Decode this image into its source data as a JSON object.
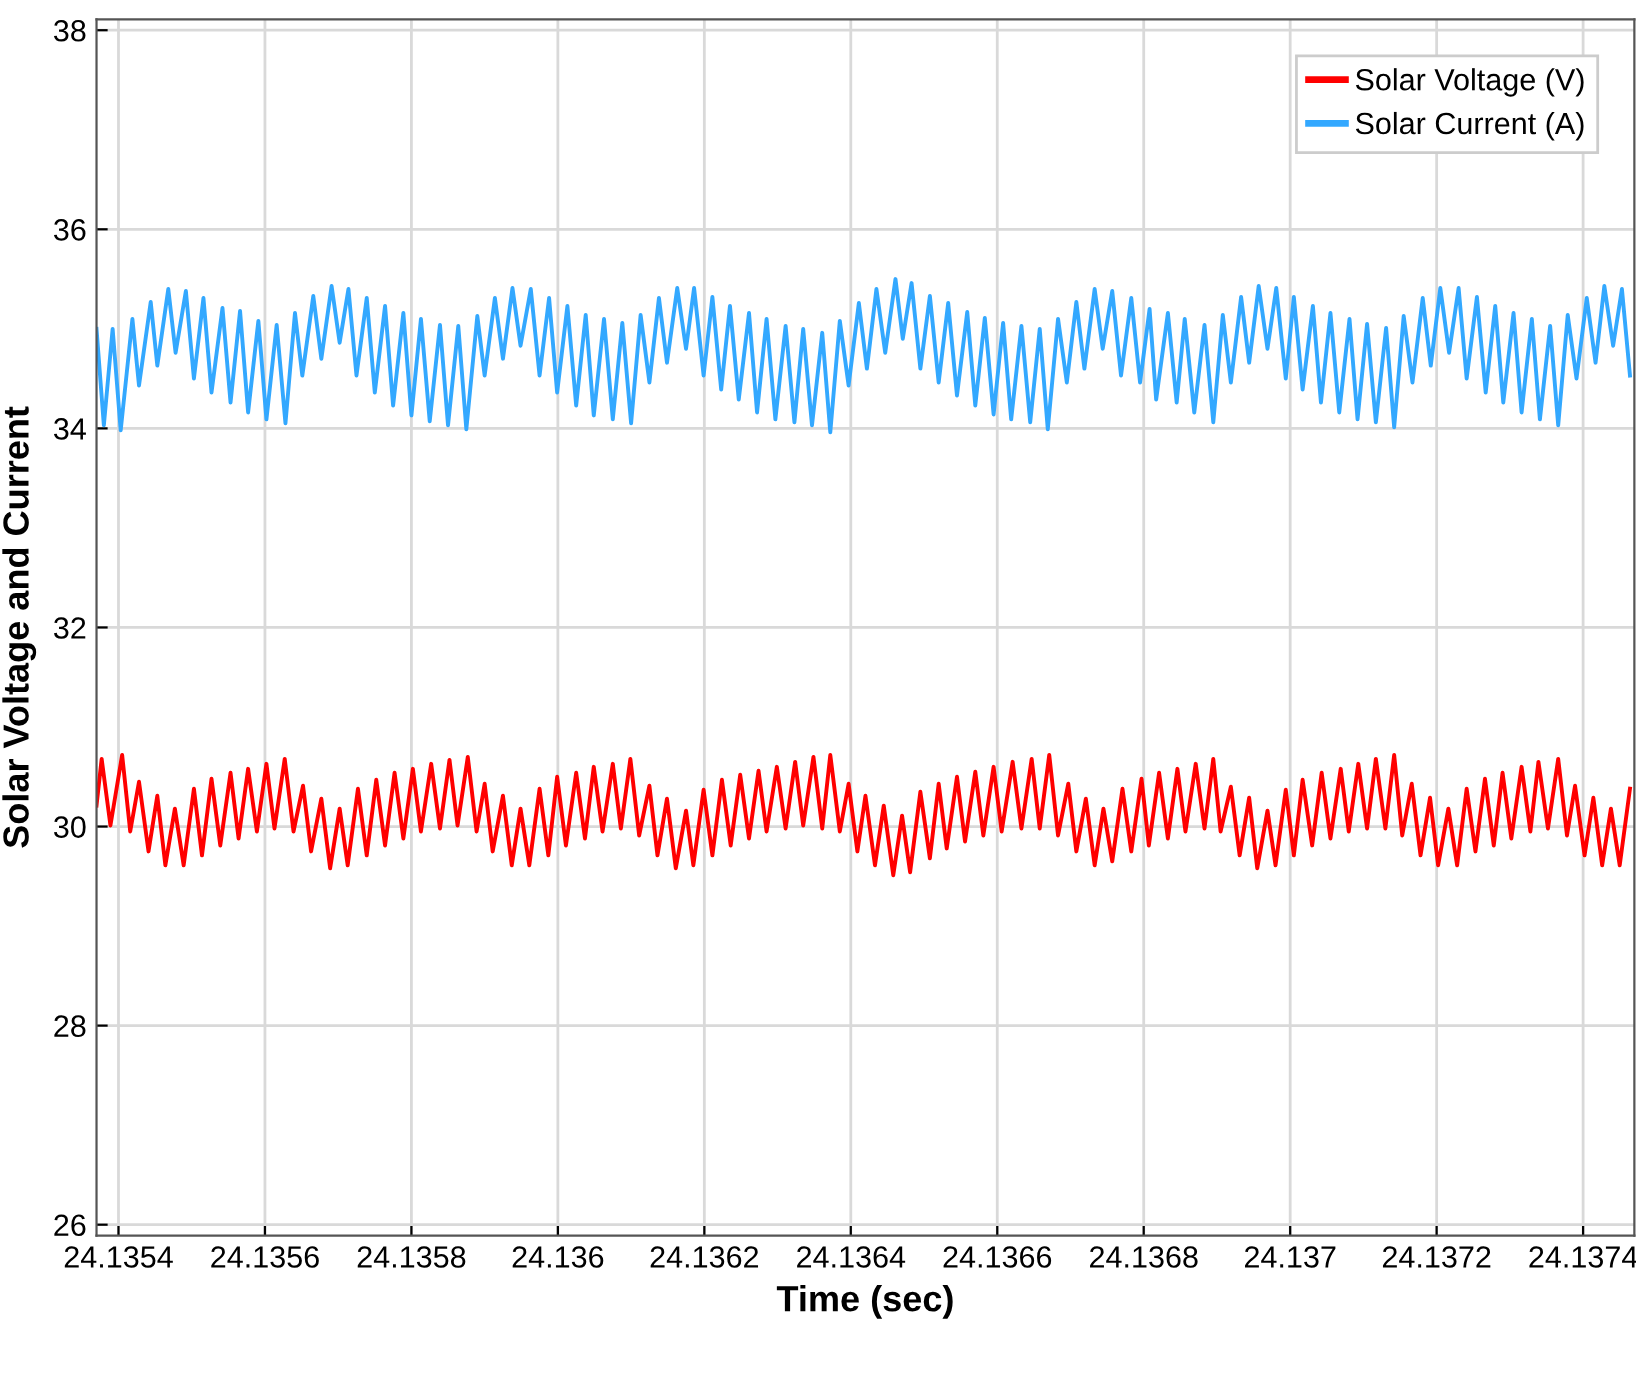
{
  "chart_data": {
    "type": "line",
    "xlabel": "Time (sec)",
    "ylabel": "Solar Voltage and Current",
    "xlim": [
      24.13537,
      24.13747
    ],
    "ylim": [
      25.89,
      38.11
    ],
    "xticks": [
      24.1354,
      24.1356,
      24.1358,
      24.136,
      24.1362,
      24.1364,
      24.1366,
      24.1368,
      24.137,
      24.1372,
      24.1374
    ],
    "yticks": [
      26,
      28,
      30,
      32,
      34,
      36,
      38
    ],
    "grid": true,
    "legend": "top right",
    "marker": "none",
    "line_style": "solid",
    "series": [
      {
        "name": "Solar Voltage (V)",
        "color": "#ff0000",
        "x": [
          24.13537,
          24.135377,
          24.135389,
          24.135405,
          24.135416,
          24.135428,
          24.135441,
          24.135453,
          24.135464,
          24.135477,
          24.135489,
          24.135503,
          24.135514,
          24.135527,
          24.135539,
          24.135553,
          24.135564,
          24.135577,
          24.135589,
          24.135602,
          24.135613,
          24.135627,
          24.135639,
          24.135652,
          24.135663,
          24.135677,
          24.135689,
          24.135702,
          24.135713,
          24.135727,
          24.135739,
          24.135752,
          24.135764,
          24.135777,
          24.135789,
          24.135802,
          24.135813,
          24.135827,
          24.135839,
          24.135852,
          24.135863,
          24.135877,
          24.135889,
          24.1359,
          24.135911,
          24.135925,
          24.135937,
          24.135949,
          24.135961,
          24.135975,
          24.135987,
          24.135999,
          24.136011,
          24.136025,
          24.136037,
          24.136049,
          24.136061,
          24.136075,
          24.136086,
          24.136099,
          24.136111,
          24.136125,
          24.136136,
          24.136149,
          24.136161,
          24.136175,
          24.136185,
          24.136199,
          24.136211,
          24.136224,
          24.136236,
          24.136249,
          24.136261,
          24.136274,
          24.136285,
          24.136299,
          24.136311,
          24.136324,
          24.136335,
          24.136349,
          24.136361,
          24.136372,
          24.136385,
          24.136397,
          24.136409,
          24.13642,
          24.136433,
          24.136445,
          24.136458,
          24.13647,
          24.136481,
          24.136495,
          24.136508,
          24.13652,
          24.136531,
          24.136545,
          24.136556,
          24.13657,
          24.136581,
          24.136595,
          24.136606,
          24.136621,
          24.136633,
          24.136647,
          24.136658,
          24.136671,
          24.136683,
          24.136697,
          24.136708,
          24.136721,
          24.136733,
          24.136745,
          24.136757,
          24.136771,
          24.136783,
          24.136797,
          24.136807,
          24.136821,
          24.136833,
          24.136846,
          24.136857,
          24.136871,
          24.136883,
          24.136895,
          24.136905,
          24.136919,
          24.136931,
          24.136944,
          24.136955,
          24.136969,
          24.13698,
          24.136994,
          24.137005,
          24.137017,
          24.13703,
          24.137043,
          24.137055,
          24.137069,
          24.13708,
          24.137093,
          24.137105,
          24.137117,
          24.13713,
          24.137142,
          24.137153,
          24.137166,
          24.137178,
          24.137191,
          24.137202,
          24.137216,
          24.137228,
          24.137241,
          24.137253,
          24.137266,
          24.137278,
          24.13729,
          24.137302,
          24.137316,
          24.137328,
          24.137339,
          24.137352,
          24.137366,
          24.137378,
          24.137389,
          24.137402,
          24.137414,
          24.137426,
          24.137438,
          24.13745,
          24.137464
        ],
        "values": [
          30.21,
          30.68,
          30.01,
          30.72,
          29.95,
          30.45,
          29.75,
          30.31,
          29.61,
          30.18,
          29.61,
          30.38,
          29.71,
          30.48,
          29.81,
          30.54,
          29.88,
          30.58,
          29.95,
          30.63,
          29.98,
          30.68,
          29.95,
          30.41,
          29.75,
          30.28,
          29.58,
          30.18,
          29.61,
          30.38,
          29.71,
          30.47,
          29.81,
          30.54,
          29.88,
          30.58,
          29.95,
          30.63,
          29.98,
          30.67,
          30.01,
          30.7,
          29.95,
          30.43,
          29.75,
          30.31,
          29.61,
          30.18,
          29.61,
          30.38,
          29.71,
          30.5,
          29.81,
          30.54,
          29.88,
          30.6,
          29.95,
          30.63,
          29.98,
          30.68,
          29.91,
          30.41,
          29.71,
          30.28,
          29.58,
          30.16,
          29.61,
          30.37,
          29.71,
          30.47,
          29.81,
          30.52,
          29.88,
          30.56,
          29.95,
          30.6,
          29.98,
          30.65,
          30.01,
          30.7,
          29.98,
          30.72,
          29.95,
          30.43,
          29.75,
          30.31,
          29.61,
          30.21,
          29.51,
          30.11,
          29.54,
          30.35,
          29.68,
          30.43,
          29.78,
          30.5,
          29.85,
          30.55,
          29.91,
          30.6,
          29.95,
          30.65,
          29.98,
          30.68,
          29.98,
          30.72,
          29.91,
          30.43,
          29.75,
          30.28,
          29.61,
          30.18,
          29.65,
          30.38,
          29.75,
          30.48,
          29.81,
          30.54,
          29.88,
          30.58,
          29.95,
          30.63,
          29.98,
          30.68,
          29.95,
          30.4,
          29.71,
          30.29,
          29.58,
          30.16,
          29.61,
          30.37,
          29.71,
          30.47,
          29.81,
          30.54,
          29.88,
          30.58,
          29.95,
          30.63,
          29.98,
          30.68,
          29.98,
          30.72,
          29.91,
          30.43,
          29.71,
          30.29,
          29.61,
          30.18,
          29.61,
          30.38,
          29.75,
          30.48,
          29.81,
          30.54,
          29.88,
          30.6,
          29.95,
          30.65,
          29.98,
          30.68,
          29.91,
          30.41,
          29.71,
          30.29,
          29.61,
          30.18,
          29.61,
          30.38
        ]
      },
      {
        "name": "Solar Current (A)",
        "color": "#33a8ff",
        "x": [
          24.13537,
          24.13538,
          24.135392,
          24.135403,
          24.135419,
          24.135428,
          24.135444,
          24.135453,
          24.135468,
          24.135478,
          24.135492,
          24.135503,
          24.135516,
          24.135527,
          24.135542,
          24.135553,
          24.135566,
          24.135577,
          24.135591,
          24.135602,
          24.135616,
          24.135628,
          24.135641,
          24.135651,
          24.135666,
          24.135677,
          24.135691,
          24.135702,
          24.135714,
          24.135725,
          24.135739,
          24.13575,
          24.135764,
          24.135775,
          24.135789,
          24.1358,
          24.135813,
          24.135825,
          24.135839,
          24.13585,
          24.135864,
          24.135875,
          24.13589,
          24.1359,
          24.135914,
          24.135925,
          24.135938,
          24.135949,
          24.135963,
          24.135975,
          24.135988,
          24.135999,
          24.136013,
          24.136025,
          24.136038,
          24.136049,
          24.136063,
          24.136075,
          24.136088,
          24.1361,
          24.136113,
          24.136125,
          24.136138,
          24.136149,
          24.136163,
          24.136175,
          24.136186,
          24.136199,
          24.136211,
          24.136223,
          24.136235,
          24.136247,
          24.136261,
          24.136272,
          24.136285,
          24.136297,
          24.136311,
          24.136323,
          24.136335,
          24.136347,
          24.136361,
          24.136372,
          24.136385,
          24.136397,
          24.136411,
          24.136422,
          24.136435,
          24.136447,
          24.136461,
          24.136471,
          24.136483,
          24.136495,
          24.136508,
          24.13652,
          24.136533,
          24.136545,
          24.136559,
          24.13657,
          24.136583,
          24.136595,
          24.136608,
          24.136619,
          24.136633,
          24.136645,
          24.136658,
          24.136669,
          24.136683,
          24.136695,
          24.136708,
          24.136719,
          24.136733,
          24.136744,
          24.136757,
          24.136769,
          24.136783,
          24.136795,
          24.136808,
          24.136817,
          24.136833,
          24.136845,
          24.136856,
          24.136869,
          24.136883,
          24.136895,
          24.136908,
          24.136919,
          24.136933,
          24.136944,
          24.136957,
          24.136969,
          24.136981,
          24.136994,
          24.137005,
          24.137017,
          24.137031,
          24.137042,
          24.137055,
          24.137067,
          24.137081,
          24.137092,
          24.137105,
          24.137117,
          24.137131,
          24.137142,
          24.137155,
          24.137167,
          24.137181,
          24.137192,
          24.137205,
          24.137217,
          24.13723,
          24.137241,
          24.137255,
          24.137267,
          24.13728,
          24.137291,
          24.137305,
          24.137316,
          24.13733,
          24.137341,
          24.137355,
          24.137366,
          24.137379,
          24.137391,
          24.137405,
          24.137417,
          24.137429,
          24.137441,
          24.137453,
          24.137464
        ],
        "values": [
          35.0,
          34.03,
          35.0,
          33.98,
          35.1,
          34.43,
          35.27,
          34.63,
          35.4,
          34.76,
          35.38,
          34.5,
          35.31,
          34.36,
          35.21,
          34.26,
          35.18,
          34.16,
          35.08,
          34.09,
          35.04,
          34.05,
          35.16,
          34.53,
          35.33,
          34.7,
          35.43,
          34.86,
          35.4,
          34.53,
          35.31,
          34.36,
          35.23,
          34.23,
          35.16,
          34.13,
          35.1,
          34.07,
          35.04,
          34.03,
          35.03,
          33.99,
          35.13,
          34.53,
          35.31,
          34.7,
          35.41,
          34.83,
          35.4,
          34.53,
          35.31,
          34.36,
          35.23,
          34.23,
          35.14,
          34.13,
          35.1,
          34.09,
          35.06,
          34.05,
          35.14,
          34.46,
          35.31,
          34.66,
          35.41,
          34.8,
          35.41,
          34.53,
          35.32,
          34.39,
          35.23,
          34.29,
          35.16,
          34.16,
          35.1,
          34.09,
          35.03,
          34.06,
          35.0,
          34.03,
          34.96,
          33.96,
          35.08,
          34.43,
          35.26,
          34.6,
          35.4,
          34.76,
          35.5,
          34.9,
          35.46,
          34.6,
          35.33,
          34.46,
          35.26,
          34.33,
          35.17,
          34.23,
          35.11,
          34.14,
          35.06,
          34.09,
          35.03,
          34.06,
          35.0,
          33.99,
          35.1,
          34.46,
          35.27,
          34.6,
          35.4,
          34.8,
          35.38,
          34.53,
          35.31,
          34.46,
          35.2,
          34.29,
          35.16,
          34.26,
          35.1,
          34.16,
          35.04,
          34.06,
          35.14,
          34.46,
          35.32,
          34.66,
          35.43,
          34.8,
          35.41,
          34.5,
          35.32,
          34.39,
          35.23,
          34.26,
          35.16,
          34.16,
          35.1,
          34.09,
          35.05,
          34.06,
          35.01,
          34.01,
          35.13,
          34.46,
          35.31,
          34.63,
          35.41,
          34.76,
          35.41,
          34.5,
          35.32,
          34.36,
          35.23,
          34.26,
          35.16,
          34.16,
          35.1,
          34.09,
          35.03,
          34.03,
          35.14,
          34.5,
          35.31,
          34.66,
          35.43,
          34.83,
          35.4,
          34.53
        ]
      }
    ]
  }
}
